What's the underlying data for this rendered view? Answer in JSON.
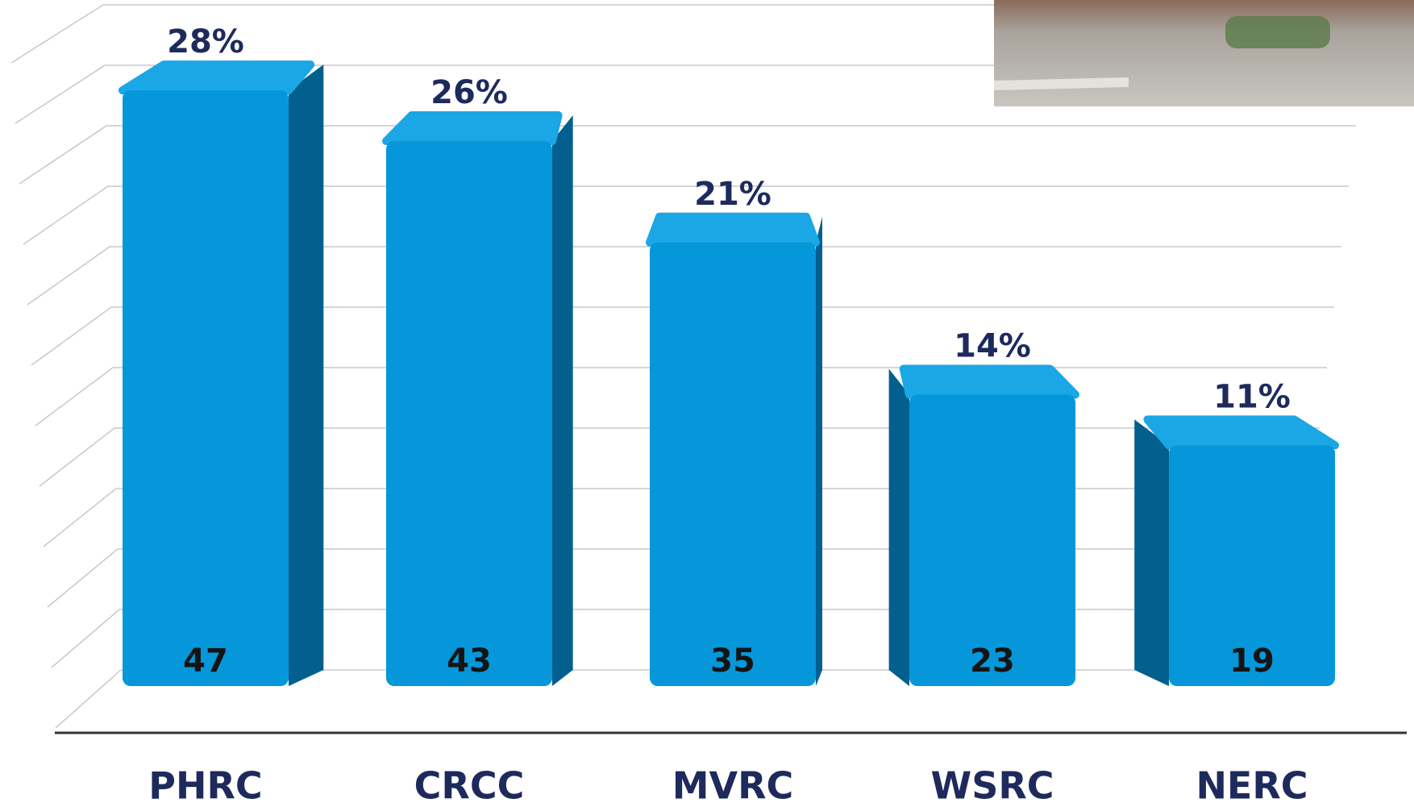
{
  "chart_data": {
    "type": "bar3d",
    "categories": [
      "PHRC",
      "CRCC",
      "MVRC",
      "WSRC",
      "NERC"
    ],
    "values": [
      47,
      43,
      35,
      23,
      19
    ],
    "shares": {
      "values": [
        28,
        26,
        21,
        14,
        11
      ],
      "value_labels": [
        "28%",
        "26%",
        "21%",
        "14%",
        "11%"
      ]
    },
    "color": "#0597da",
    "ylim": [
      0,
      50
    ]
  }
}
